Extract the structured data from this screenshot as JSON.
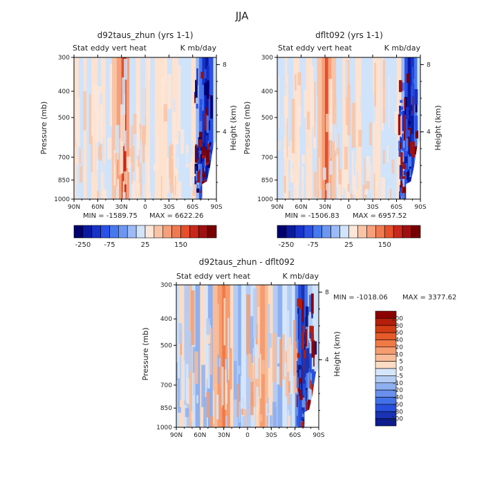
{
  "page_title": "JJA",
  "panel_labels": {
    "left": "Stat eddy vert heat",
    "right": "K mb/day"
  },
  "chart_data": [
    {
      "type": "heatmap",
      "title": "d92taus_zhun (yrs 1-1)",
      "ylabel": "Pressure (mb)",
      "ylabel_right": "Height (km)",
      "x_ticks": [
        "90N",
        "60N",
        "30N",
        "0",
        "30S",
        "60S",
        "90S"
      ],
      "y_ticks": [
        300,
        400,
        500,
        700,
        850,
        1000
      ],
      "y_ticks_right": [
        8,
        4
      ],
      "ylim": [
        1000,
        300
      ],
      "y_scale": "log",
      "min_label": "MIN = -1589.75",
      "max_label": "MAX = 6622.26",
      "colorbar_ticks": [
        "-250",
        "-75",
        "25",
        "150"
      ],
      "colorbar_orientation": "horizontal"
    },
    {
      "type": "heatmap",
      "title": "dflt092 (yrs 1-1)",
      "ylabel": "Pressure (mb)",
      "ylabel_right": "Height (km)",
      "x_ticks": [
        "90N",
        "60N",
        "30N",
        "0",
        "30S",
        "60S",
        "90S"
      ],
      "y_ticks": [
        300,
        400,
        500,
        700,
        850,
        1000
      ],
      "y_ticks_right": [
        8,
        4
      ],
      "ylim": [
        1000,
        300
      ],
      "y_scale": "log",
      "min_label": "MIN = -1506.83",
      "max_label": "MAX = 6957.52",
      "colorbar_ticks": [
        "-250",
        "-75",
        "25",
        "150"
      ],
      "colorbar_orientation": "horizontal"
    },
    {
      "type": "heatmap",
      "title": "d92taus_zhun - dflt092",
      "ylabel": "Pressure (mb)",
      "ylabel_right": "Height (km)",
      "x_ticks": [
        "90N",
        "60N",
        "30N",
        "0",
        "30S",
        "60S",
        "90S"
      ],
      "y_ticks": [
        300,
        400,
        500,
        700,
        850,
        1000
      ],
      "y_ticks_right": [
        8,
        4
      ],
      "ylim": [
        1000,
        300
      ],
      "y_scale": "log",
      "min_label": "MIN = -1018.06",
      "max_label": "MAX = 3377.62",
      "colorbar_ticks": [
        "100",
        "80",
        "60",
        "40",
        "20",
        "10",
        "5",
        "0",
        "-5",
        "-10",
        "-20",
        "-40",
        "-60",
        "-80",
        "-100"
      ],
      "colorbar_orientation": "vertical"
    }
  ],
  "colors": {
    "small_scale": [
      "#00006e",
      "#0a1aa0",
      "#1732c8",
      "#2a50e6",
      "#4678ee",
      "#6c96f2",
      "#9cbaf5",
      "#d2e4f9",
      "#fde6d8",
      "#f9c4a6",
      "#f5a07a",
      "#f07a50",
      "#e4502c",
      "#c8281a",
      "#a01010",
      "#780000"
    ],
    "diff_scale": [
      "#8c0000",
      "#b41e0a",
      "#d23c14",
      "#e65a28",
      "#f07a46",
      "#f59c70",
      "#f8bc98",
      "#fcdcc4",
      "#d6e6fa",
      "#b4ccf4",
      "#8eb0f0",
      "#6890ec",
      "#4270e6",
      "#2850dc",
      "#1a32b4",
      "#0c1c8c"
    ],
    "background_light_blue": "#cfe3fa",
    "background_light_orange": "#fde2cf"
  }
}
